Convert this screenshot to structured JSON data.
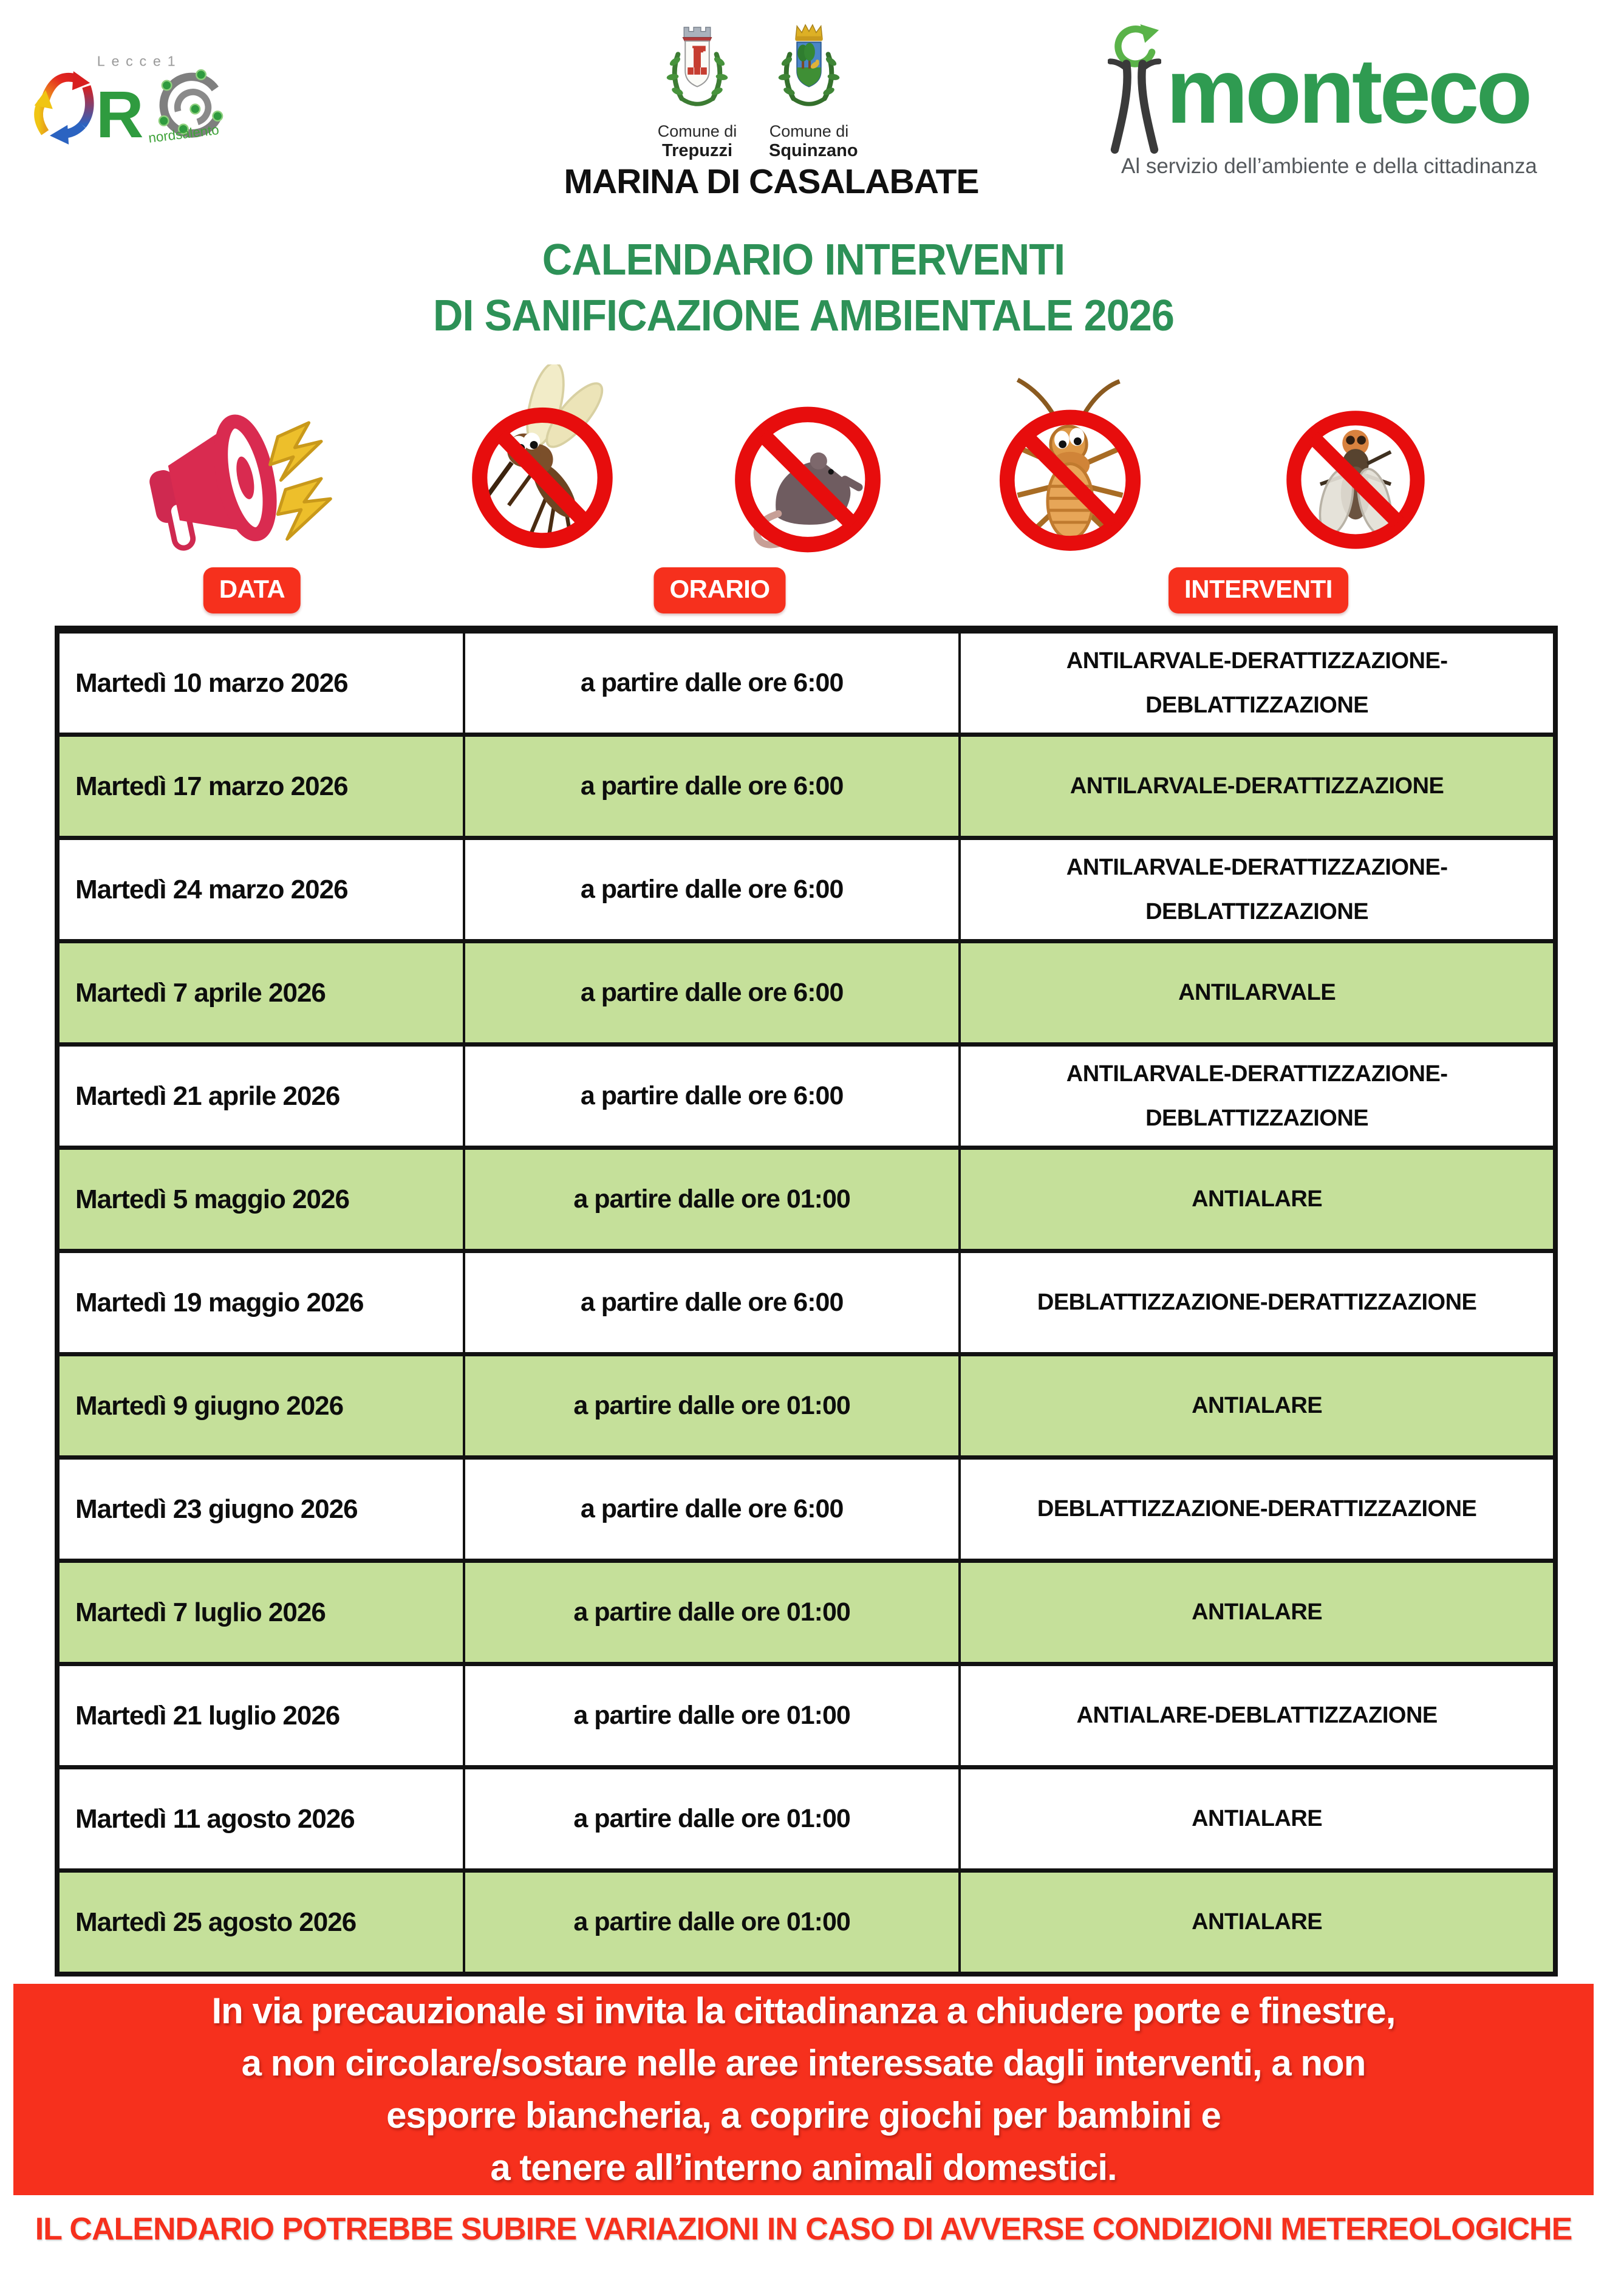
{
  "page": {
    "subtitle": "MARINA DI CASALABATE",
    "title_line1": "CALENDARIO INTERVENTI",
    "title_line2": "DI SANIFICAZIONE AMBIENTALE 2026"
  },
  "logos": {
    "aro": {
      "top_text": "Lecce1",
      "r_letter": "R",
      "bottom_text": "nordsalento"
    },
    "comune_trepuzzi": {
      "line1": "Comune di",
      "line2": "Trepuzzi"
    },
    "comune_squinzano": {
      "line1": "Comune di",
      "line2": "Squinzano"
    },
    "monteco": {
      "name": "monteco",
      "tagline": "Al servizio dell’ambiente e della cittadinanza"
    }
  },
  "icons": [
    "megaphone-icon",
    "no-mosquito-icon",
    "no-rat-icon",
    "no-cockroach-icon",
    "no-fly-icon"
  ],
  "table": {
    "headers": {
      "data": "DATA",
      "orario": "ORARIO",
      "interventi": "INTERVENTI"
    },
    "rows": [
      {
        "data": "Martedì 10 marzo 2026",
        "orario": "a partire dalle ore 6:00",
        "interventi": [
          "ANTILARVALE-DERATTIZZAZIONE-",
          "DEBLATTIZZAZIONE"
        ],
        "highlight": false
      },
      {
        "data": "Martedì 17 marzo 2026",
        "orario": "a partire dalle ore 6:00",
        "interventi": [
          "ANTILARVALE-DERATTIZZAZIONE"
        ],
        "highlight": true
      },
      {
        "data": "Martedì 24 marzo 2026",
        "orario": "a partire dalle ore 6:00",
        "interventi": [
          "ANTILARVALE-DERATTIZZAZIONE-",
          "DEBLATTIZZAZIONE"
        ],
        "highlight": false
      },
      {
        "data": "Martedì 7 aprile 2026",
        "orario": "a partire dalle ore 6:00",
        "interventi": [
          "ANTILARVALE"
        ],
        "highlight": true
      },
      {
        "data": "Martedì 21 aprile 2026",
        "orario": "a partire dalle ore 6:00",
        "interventi": [
          "ANTILARVALE-DERATTIZZAZIONE-",
          "DEBLATTIZZAZIONE"
        ],
        "highlight": false
      },
      {
        "data": "Martedì 5 maggio 2026",
        "orario": "a partire dalle ore 01:00",
        "interventi": [
          "ANTIALARE"
        ],
        "highlight": true
      },
      {
        "data": "Martedì 19 maggio 2026",
        "orario": "a partire dalle ore 6:00",
        "interventi": [
          "DEBLATTIZZAZIONE-DERATTIZZAZIONE"
        ],
        "highlight": false
      },
      {
        "data": "Martedì 9 giugno 2026",
        "orario": "a partire dalle ore 01:00",
        "interventi": [
          "ANTIALARE"
        ],
        "highlight": true
      },
      {
        "data": "Martedì 23 giugno 2026",
        "orario": "a partire dalle ore 6:00",
        "interventi": [
          "DEBLATTIZZAZIONE-DERATTIZZAZIONE"
        ],
        "highlight": false
      },
      {
        "data": "Martedì 7 luglio 2026",
        "orario": "a partire dalle ore 01:00",
        "interventi": [
          "ANTIALARE"
        ],
        "highlight": true
      },
      {
        "data": "Martedì 21 luglio 2026",
        "orario": "a partire dalle ore 01:00",
        "interventi": [
          "ANTIALARE-DEBLATTIZZAZIONE"
        ],
        "highlight": false
      },
      {
        "data": "Martedì 11 agosto 2026",
        "orario": "a partire dalle ore 01:00",
        "interventi": [
          "ANTIALARE"
        ],
        "highlight": false
      },
      {
        "data": "Martedì 25 agosto 2026",
        "orario": "a partire dalle ore 01:00",
        "interventi": [
          "ANTIALARE"
        ],
        "highlight": true
      }
    ]
  },
  "notice": {
    "lines": [
      "In via precauzionale si invita la cittadinanza a chiudere porte e finestre,",
      "a non circolare/sostare nelle aree interessate dagli interventi, a non",
      "esporre biancheria, a coprire giochi per bambini e",
      "a tenere all’interno animali domestici."
    ]
  },
  "footer": {
    "text": "IL CALENDARIO POTREBBE SUBIRE VARIAZIONI IN CASO DI AVVERSE CONDIZIONI METEREOLOGICHE"
  },
  "colors": {
    "red": "#f6301d",
    "row_green": "#c5e09a",
    "title_green": "#2d9157",
    "monteco_green": "#2f9b51",
    "prohibition_red": "#e70d0d"
  }
}
